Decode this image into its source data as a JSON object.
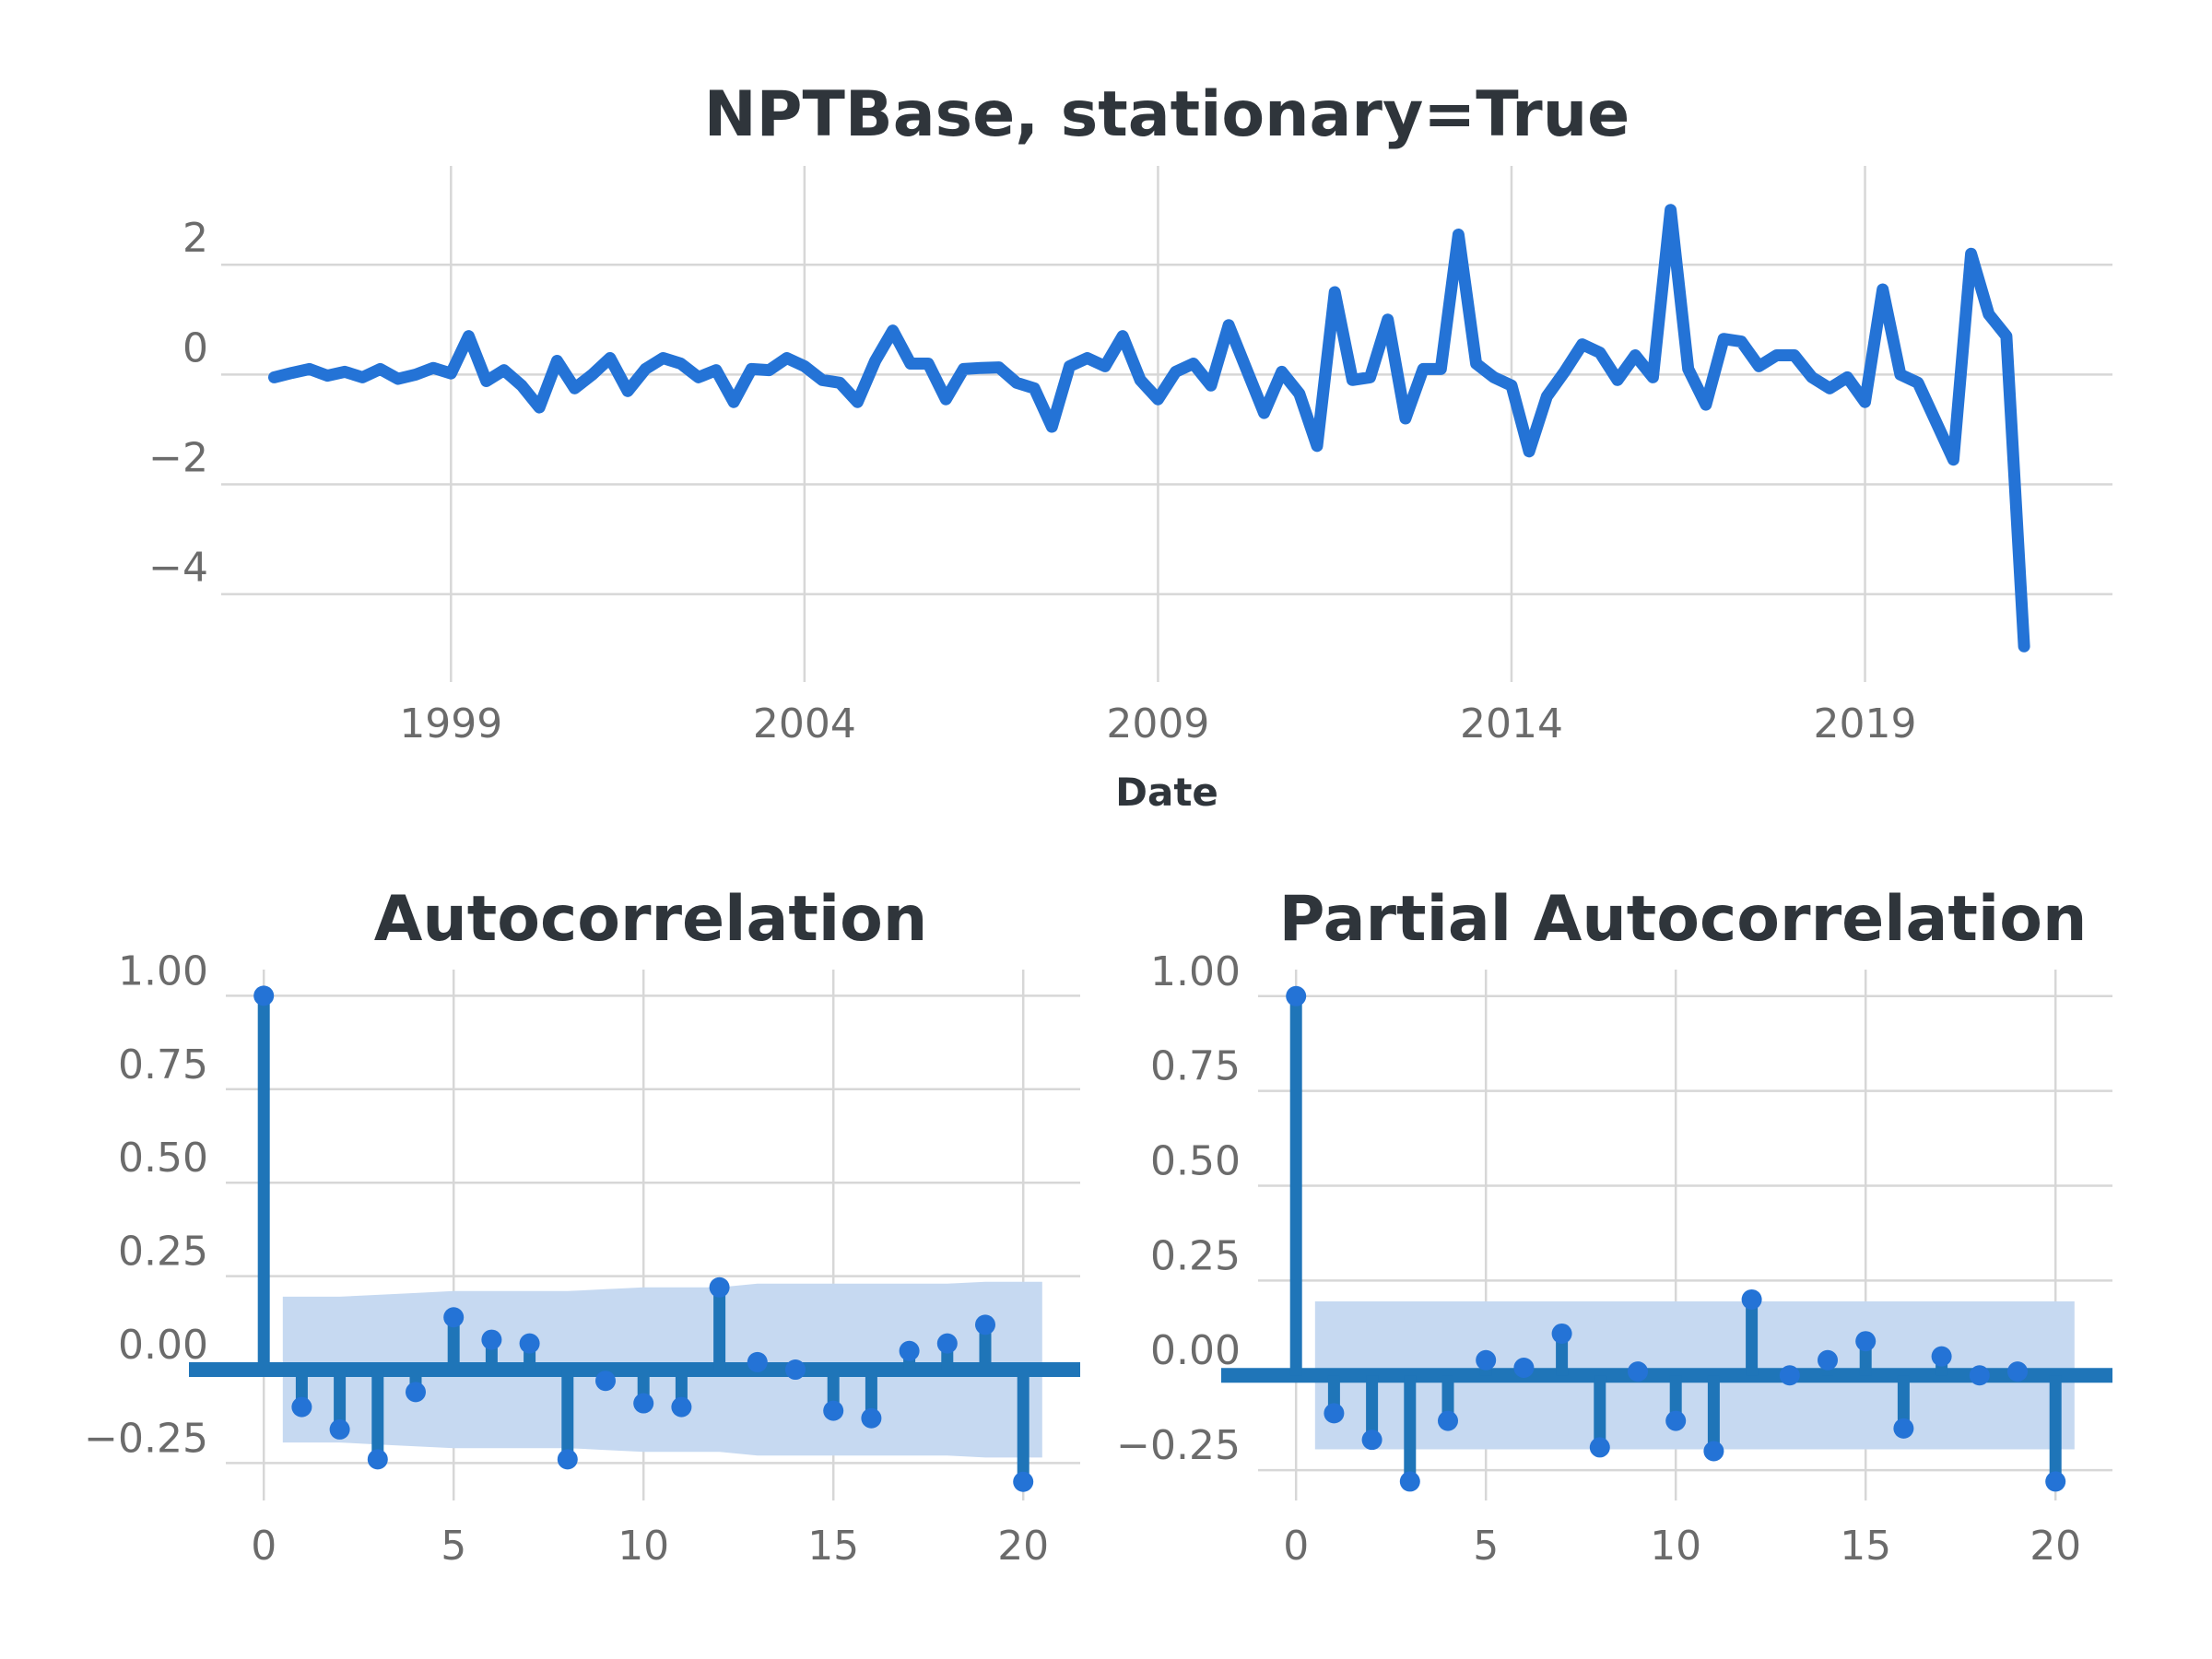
{
  "colors": {
    "line": "#2473d6",
    "stem": "#1f75b8",
    "marker": "#2473d6",
    "band": "#c6d9f1",
    "grid": "#d7d7d7",
    "title": "#2f353b",
    "tick": "#6b6b6b"
  },
  "chart_data": [
    {
      "id": "series",
      "type": "line",
      "title": "NPTBase, stationary=True",
      "xlabel": "Date",
      "ylabel": "",
      "grid": true,
      "x_start": 1996.5,
      "x_step": 0.25,
      "xlim": [
        1995.75,
        2022.5
      ],
      "ylim": [
        -5.6,
        3.8
      ],
      "xticks": [
        1999,
        2004,
        2009,
        2014,
        2019
      ],
      "xtick_labels": [
        "1999",
        "2004",
        "2009",
        "2014",
        "2019"
      ],
      "yticks": [
        2,
        0,
        -2,
        -4
      ],
      "ytick_labels": [
        "2",
        "0",
        "−2",
        "−4"
      ],
      "values": [
        -0.05,
        0.03,
        0.1,
        -0.02,
        0.05,
        -0.05,
        0.1,
        -0.08,
        0.0,
        0.12,
        0.02,
        0.7,
        -0.12,
        0.08,
        -0.2,
        -0.6,
        0.25,
        -0.25,
        0.0,
        0.3,
        -0.3,
        0.1,
        0.3,
        0.2,
        -0.05,
        0.08,
        -0.5,
        0.1,
        0.08,
        0.3,
        0.15,
        -0.1,
        -0.15,
        -0.5,
        0.25,
        0.8,
        0.2,
        0.2,
        -0.45,
        0.1,
        0.12,
        0.13,
        -0.15,
        -0.25,
        -0.95,
        0.15,
        0.3,
        0.15,
        0.7,
        -0.1,
        -0.45,
        0.05,
        0.2,
        -0.2,
        0.9,
        0.1,
        -0.7,
        0.05,
        -0.35,
        -1.3,
        1.5,
        -0.1,
        -0.05,
        1.0,
        -0.8,
        0.1,
        0.1,
        2.55,
        0.2,
        -0.05,
        -0.2,
        -1.4,
        -0.4,
        0.05,
        0.55,
        0.4,
        -0.1,
        0.35,
        -0.05,
        3.0,
        0.1,
        -0.55,
        0.65,
        0.6,
        0.15,
        0.35,
        0.35,
        -0.05,
        -0.25,
        -0.05,
        -0.5,
        1.55,
        0.0,
        -0.15,
        -0.85,
        -1.55,
        2.2,
        1.1,
        0.7,
        -4.95
      ]
    },
    {
      "id": "acf",
      "type": "stem",
      "title": "Autocorrelation",
      "xlabel": "",
      "ylabel": "",
      "grid": true,
      "xlim": [
        -1,
        21.5
      ],
      "ylim": [
        -0.35,
        1.07
      ],
      "xticks": [
        0,
        5,
        10,
        15,
        20
      ],
      "xtick_labels": [
        "0",
        "5",
        "10",
        "15",
        "20"
      ],
      "yticks": [
        1.0,
        0.75,
        0.5,
        0.25,
        0.0,
        -0.25
      ],
      "ytick_labels": [
        "1.00",
        "0.75",
        "0.50",
        "0.25",
        "0.00",
        "−0.25"
      ],
      "lags": [
        0,
        1,
        2,
        3,
        4,
        5,
        6,
        7,
        8,
        9,
        10,
        11,
        12,
        13,
        14,
        15,
        16,
        17,
        18,
        19,
        20
      ],
      "values": [
        1.0,
        -0.1,
        -0.16,
        -0.24,
        -0.06,
        0.14,
        0.08,
        0.07,
        -0.24,
        -0.03,
        -0.09,
        -0.1,
        0.22,
        0.02,
        0.0,
        -0.11,
        -0.13,
        0.05,
        0.07,
        0.12,
        -0.3
      ],
      "confidence_band": {
        "x": [
          0.5,
          1,
          2,
          3,
          4,
          5,
          6,
          7,
          8,
          9,
          10,
          11,
          12,
          13,
          14,
          15,
          16,
          17,
          18,
          19,
          20,
          20.5
        ],
        "upper": [
          0.195,
          0.195,
          0.195,
          0.2,
          0.205,
          0.21,
          0.21,
          0.21,
          0.21,
          0.215,
          0.22,
          0.22,
          0.22,
          0.23,
          0.23,
          0.23,
          0.23,
          0.23,
          0.23,
          0.235,
          0.235,
          0.235
        ],
        "lower": [
          -0.195,
          -0.195,
          -0.195,
          -0.2,
          -0.205,
          -0.21,
          -0.21,
          -0.21,
          -0.21,
          -0.215,
          -0.22,
          -0.22,
          -0.22,
          -0.23,
          -0.23,
          -0.23,
          -0.23,
          -0.23,
          -0.23,
          -0.235,
          -0.235,
          -0.235
        ]
      }
    },
    {
      "id": "pacf",
      "type": "stem",
      "title": "Partial Autocorrelation",
      "xlabel": "",
      "ylabel": "",
      "grid": true,
      "xlim": [
        -1,
        21.5
      ],
      "ylim": [
        -0.33,
        1.07
      ],
      "xticks": [
        0,
        5,
        10,
        15,
        20
      ],
      "xtick_labels": [
        "0",
        "5",
        "10",
        "15",
        "20"
      ],
      "yticks": [
        1.0,
        0.75,
        0.5,
        0.25,
        0.0,
        -0.25
      ],
      "ytick_labels": [
        "1.00",
        "0.75",
        "0.50",
        "0.25",
        "0.00",
        "−0.25"
      ],
      "lags": [
        0,
        1,
        2,
        3,
        4,
        5,
        6,
        7,
        8,
        9,
        10,
        11,
        12,
        13,
        14,
        15,
        16,
        17,
        18,
        19,
        20
      ],
      "values": [
        1.0,
        -0.1,
        -0.17,
        -0.28,
        -0.12,
        0.04,
        0.02,
        0.11,
        -0.19,
        0.01,
        -0.12,
        -0.2,
        0.2,
        0.0,
        0.04,
        0.09,
        -0.14,
        0.05,
        0.0,
        0.01,
        -0.28
      ],
      "confidence_band": {
        "x": [
          0.5,
          20.5
        ],
        "upper": [
          0.195,
          0.195
        ],
        "lower": [
          -0.195,
          -0.195
        ]
      }
    }
  ]
}
